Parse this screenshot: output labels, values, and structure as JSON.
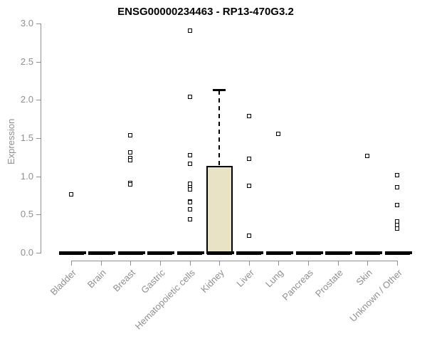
{
  "chart_data": {
    "type": "boxplot",
    "title": "ENSG00000234463 - RP13-470G3.2",
    "ylabel": "Expression",
    "xlabel": "",
    "ylim": [
      0,
      3
    ],
    "yticks": [
      0,
      0.5,
      1,
      1.5,
      2,
      2.5,
      3
    ],
    "grid": false,
    "legend": "none",
    "categories": [
      "Bladder",
      "Brain",
      "Breast",
      "Gastric",
      "Hematopoietic cells",
      "Kidney",
      "Liver",
      "Lung",
      "Pancreas",
      "Prostate",
      "Skin",
      "Unknown / Other"
    ],
    "boxes": [
      {
        "category": "Bladder",
        "q1": 0,
        "median": 0,
        "q3": 0,
        "whisker_low": 0,
        "whisker_high": 0,
        "outliers": [
          0.76
        ]
      },
      {
        "category": "Brain",
        "q1": 0,
        "median": 0,
        "q3": 0,
        "whisker_low": 0,
        "whisker_high": 0,
        "outliers": []
      },
      {
        "category": "Breast",
        "q1": 0,
        "median": 0,
        "q3": 0,
        "whisker_low": 0,
        "whisker_high": 0,
        "outliers": [
          1.54,
          1.31,
          1.24,
          1.21,
          0.91,
          0.89
        ]
      },
      {
        "category": "Gastric",
        "q1": 0,
        "median": 0,
        "q3": 0,
        "whisker_low": 0,
        "whisker_high": 0,
        "outliers": []
      },
      {
        "category": "Hematopoietic cells",
        "q1": 0,
        "median": 0,
        "q3": 0,
        "whisker_low": 0,
        "whisker_high": 0,
        "outliers": [
          2.91,
          2.04,
          1.28,
          1.16,
          0.9,
          0.86,
          0.83,
          0.67,
          0.66,
          0.57,
          0.44
        ]
      },
      {
        "category": "Kidney",
        "q1": 0,
        "median": 0,
        "q3": 1.14,
        "whisker_low": 0,
        "whisker_high": 2.13,
        "outliers": []
      },
      {
        "category": "Liver",
        "q1": 0,
        "median": 0,
        "q3": 0,
        "whisker_low": 0,
        "whisker_high": 0,
        "outliers": [
          1.79,
          1.23,
          0.88,
          0.22
        ]
      },
      {
        "category": "Lung",
        "q1": 0,
        "median": 0,
        "q3": 0,
        "whisker_low": 0,
        "whisker_high": 0,
        "outliers": [
          1.56
        ]
      },
      {
        "category": "Pancreas",
        "q1": 0,
        "median": 0,
        "q3": 0,
        "whisker_low": 0,
        "whisker_high": 0,
        "outliers": []
      },
      {
        "category": "Prostate",
        "q1": 0,
        "median": 0,
        "q3": 0,
        "whisker_low": 0,
        "whisker_high": 0,
        "outliers": []
      },
      {
        "category": "Skin",
        "q1": 0,
        "median": 0,
        "q3": 0,
        "whisker_low": 0,
        "whisker_high": 0,
        "outliers": [
          1.27
        ]
      },
      {
        "category": "Unknown / Other",
        "q1": 0,
        "median": 0,
        "q3": 0,
        "whisker_low": 0,
        "whisker_high": 0,
        "outliers": [
          1.02,
          0.86,
          0.62,
          0.41,
          0.36,
          0.32
        ]
      }
    ],
    "colors": {
      "box_fill": "#e9e3c6",
      "box_border": "#000000",
      "median": "#000000",
      "outlier_marker": "#000000",
      "axis": "#8f8f8f",
      "tick_label": "#8f8f8f",
      "title": "#000000",
      "background": "#ffffff"
    }
  }
}
